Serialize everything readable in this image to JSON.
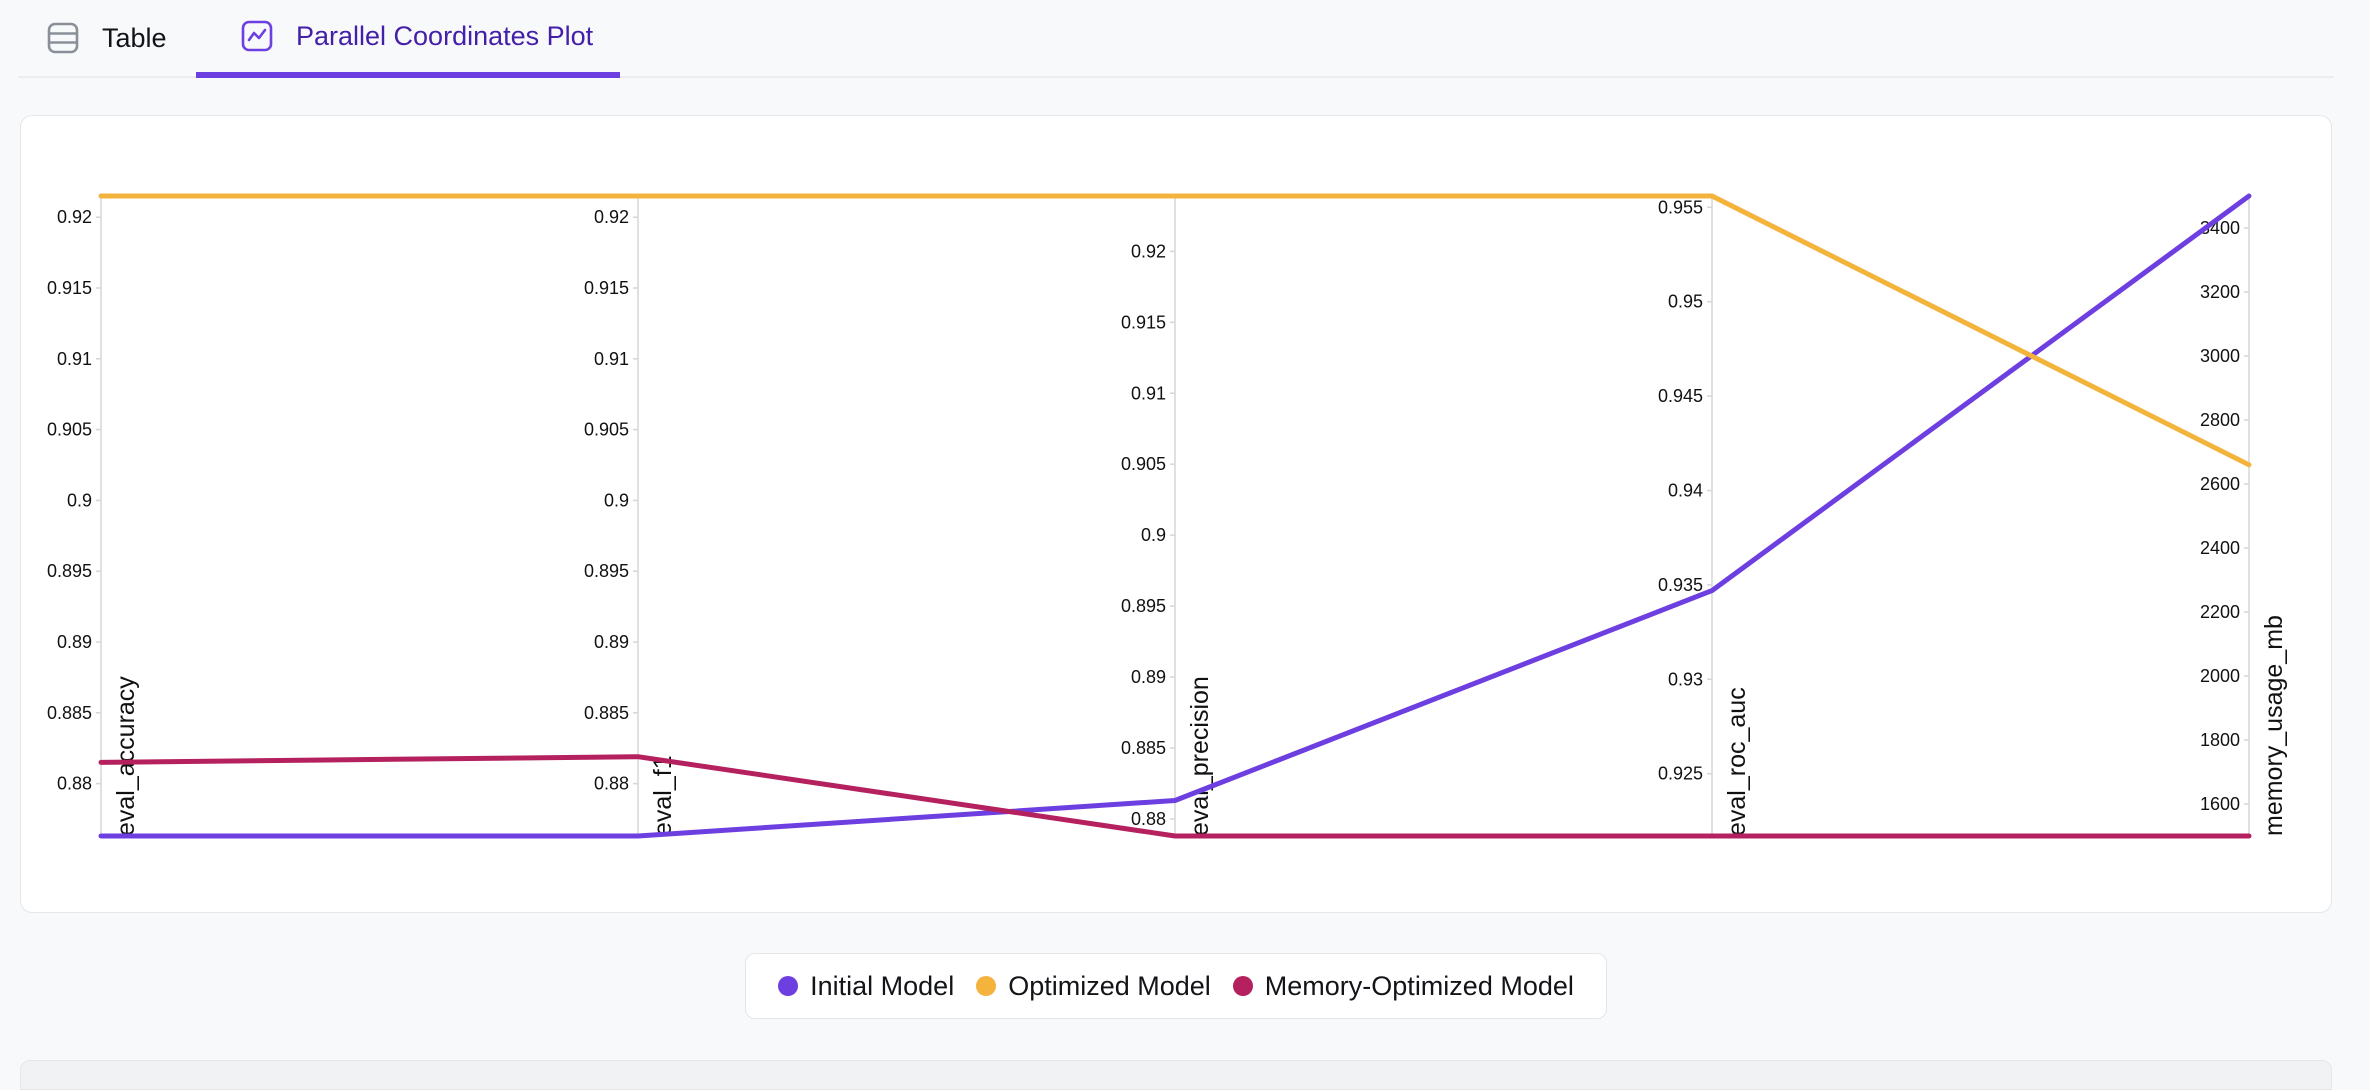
{
  "tabs": [
    {
      "label": "Table",
      "icon": "table-icon",
      "active": false
    },
    {
      "label": "Parallel Coordinates Plot",
      "icon": "line-chart-icon",
      "active": true
    }
  ],
  "colors": {
    "accent": "#6d3fe0",
    "axis": "#d6d6d6"
  },
  "chart_data": {
    "type": "parallel_coordinates",
    "dimensions": [
      {
        "name": "eval_accuracy",
        "range": [
          0.8763,
          0.9215
        ],
        "ticks": [
          "0.88",
          "0.885",
          "0.89",
          "0.895",
          "0.9",
          "0.905",
          "0.91",
          "0.915",
          "0.92"
        ]
      },
      {
        "name": "eval_f1",
        "range": [
          0.8763,
          0.9215
        ],
        "ticks": [
          "0.88",
          "0.885",
          "0.89",
          "0.895",
          "0.9",
          "0.905",
          "0.91",
          "0.915",
          "0.92"
        ]
      },
      {
        "name": "eval_precision",
        "range": [
          0.8788,
          0.9239
        ],
        "ticks": [
          "0.88",
          "0.885",
          "0.89",
          "0.895",
          "0.9",
          "0.905",
          "0.91",
          "0.915",
          "0.92"
        ]
      },
      {
        "name": "eval_roc_auc",
        "range": [
          0.9217,
          0.9556
        ],
        "ticks": [
          "0.925",
          "0.93",
          "0.935",
          "0.94",
          "0.945",
          "0.95",
          "0.955"
        ]
      },
      {
        "name": "memory_usage_mb",
        "range": [
          1500,
          3500
        ],
        "ticks": [
          "1600",
          "1800",
          "2000",
          "2200",
          "2400",
          "2600",
          "2800",
          "3000",
          "3200",
          "3400"
        ]
      }
    ],
    "series": [
      {
        "name": "Initial Model",
        "color": "#6d3fe0",
        "values": [
          0.8763,
          0.8763,
          0.8813,
          0.9347,
          3500
        ]
      },
      {
        "name": "Optimized Model",
        "color": "#f4b33c",
        "values": [
          0.9215,
          0.9215,
          0.9239,
          0.9556,
          2660
        ]
      },
      {
        "name": "Memory-Optimized Model",
        "color": "#b5215e",
        "values": [
          0.8815,
          0.8819,
          0.8788,
          0.9217,
          1500
        ]
      }
    ]
  }
}
